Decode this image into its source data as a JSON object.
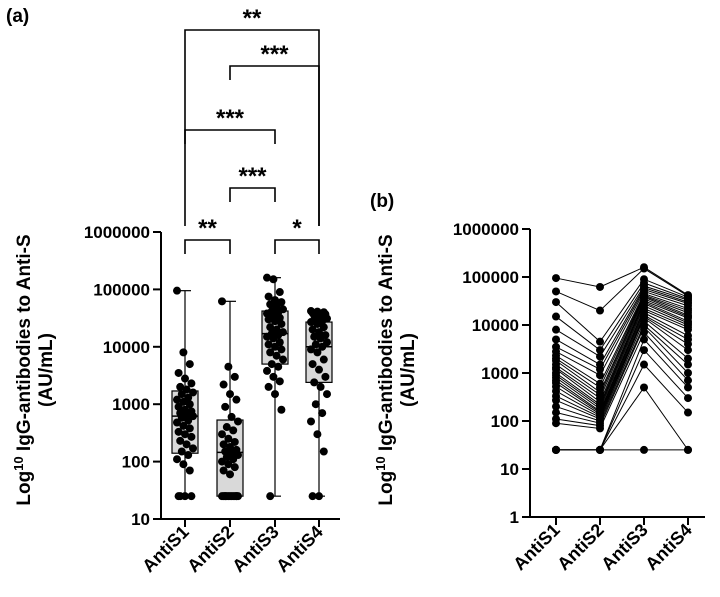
{
  "colors": {
    "box_fill": "#d9d9d9",
    "ink": "#000000",
    "background": "#ffffff"
  },
  "panels": {
    "a": "(a)",
    "b": "(b)"
  },
  "chart_data": [
    {
      "type": "box",
      "panel": "(a)",
      "title": "",
      "ylabel_prefix": "Log",
      "ylabel_superscript": "10",
      "ylabel_main": "IgG-antibodies to Anti-S",
      "ylabel_units": "(AU/mL)",
      "yscale": "log",
      "ylim": [
        10,
        1000000
      ],
      "yticks": [
        "10",
        "100",
        "1000",
        "10000",
        "100000",
        "1000000"
      ],
      "categories": [
        "AntiS1",
        "AntiS2",
        "AntiS3",
        "AntiS4"
      ],
      "boxes": [
        {
          "category": "AntiS1",
          "min": 25,
          "q1": 140,
          "median": 620,
          "q3": 1700,
          "max": 95000
        },
        {
          "category": "AntiS2",
          "min": 25,
          "q1": 25,
          "median": 145,
          "q3": 530,
          "max": 62000
        },
        {
          "category": "AntiS3",
          "min": 25,
          "q1": 5000,
          "median": 17000,
          "q3": 42000,
          "max": 160000
        },
        {
          "category": "AntiS4",
          "min": 25,
          "q1": 2400,
          "median": 10000,
          "q3": 27000,
          "max": 42000
        }
      ],
      "points": [
        {
          "category": "AntiS1",
          "values": [
            95000,
            8000,
            5000,
            3500,
            2800,
            2300,
            2000,
            1800,
            1600,
            1500,
            1300,
            1200,
            1100,
            1000,
            900,
            800,
            750,
            700,
            650,
            620,
            580,
            520,
            480,
            420,
            380,
            330,
            300,
            270,
            230,
            200,
            170,
            150,
            130,
            110,
            90,
            70,
            25,
            25,
            25,
            25
          ]
        },
        {
          "category": "AntiS2",
          "values": [
            62000,
            4500,
            3000,
            2200,
            1500,
            1200,
            900,
            600,
            500,
            400,
            350,
            300,
            250,
            220,
            200,
            180,
            160,
            150,
            140,
            130,
            120,
            110,
            100,
            90,
            80,
            70,
            60,
            25,
            25,
            25,
            25,
            25,
            25,
            25,
            25,
            25,
            25,
            25,
            25,
            25
          ]
        },
        {
          "category": "AntiS3",
          "values": [
            160000,
            150000,
            90000,
            75000,
            65000,
            60000,
            55000,
            50000,
            45000,
            42000,
            40000,
            38000,
            35000,
            32000,
            30000,
            28000,
            25000,
            22000,
            20000,
            18000,
            17000,
            16000,
            15000,
            14000,
            12000,
            11000,
            10000,
            9000,
            8000,
            7000,
            6000,
            5000,
            4500,
            3800,
            3000,
            2500,
            2000,
            1500,
            800,
            25
          ]
        },
        {
          "category": "AntiS4",
          "values": [
            42000,
            41000,
            40000,
            39000,
            38000,
            37000,
            35000,
            33000,
            31000,
            30000,
            28000,
            27000,
            25000,
            22000,
            20000,
            18000,
            16000,
            15000,
            14000,
            12000,
            11000,
            10000,
            9000,
            8000,
            6000,
            5000,
            4000,
            3000,
            2400,
            2000,
            1500,
            1000,
            700,
            500,
            300,
            150,
            25,
            25
          ]
        }
      ],
      "significance": [
        {
          "pair": [
            "AntiS1",
            "AntiS4"
          ],
          "label": "**"
        },
        {
          "pair": [
            "AntiS2",
            "AntiS4"
          ],
          "label": "***"
        },
        {
          "pair": [
            "AntiS1",
            "AntiS3"
          ],
          "label": "***"
        },
        {
          "pair": [
            "AntiS2",
            "AntiS3"
          ],
          "label": "***"
        },
        {
          "pair": [
            "AntiS1",
            "AntiS2"
          ],
          "label": "**"
        },
        {
          "pair": [
            "AntiS3",
            "AntiS4"
          ],
          "label": "*"
        }
      ]
    },
    {
      "type": "line",
      "panel": "(b)",
      "title": "",
      "ylabel_prefix": "Log",
      "ylabel_superscript": "10",
      "ylabel_main": "IgG-antibodies to Anti-S",
      "ylabel_units": "(AU/mL)",
      "yscale": "log",
      "ylim": [
        1,
        1000000
      ],
      "yticks": [
        "1",
        "10",
        "100",
        "1000",
        "10000",
        "100000",
        "1000000"
      ],
      "categories": [
        "AntiS1",
        "AntiS2",
        "AntiS3",
        "AntiS4"
      ],
      "paired_series": [
        [
          95000,
          62000,
          160000,
          42000
        ],
        [
          50000,
          20000,
          150000,
          40000
        ],
        [
          30000,
          4500,
          90000,
          38000
        ],
        [
          15000,
          3000,
          75000,
          35000
        ],
        [
          8000,
          2200,
          65000,
          33000
        ],
        [
          5000,
          1500,
          60000,
          30000
        ],
        [
          3500,
          1200,
          55000,
          28000
        ],
        [
          2800,
          900,
          50000,
          25000
        ],
        [
          2300,
          600,
          45000,
          22000
        ],
        [
          2000,
          500,
          42000,
          20000
        ],
        [
          1800,
          400,
          40000,
          18000
        ],
        [
          1500,
          350,
          38000,
          16000
        ],
        [
          1300,
          300,
          35000,
          15000
        ],
        [
          1200,
          250,
          32000,
          14000
        ],
        [
          1000,
          220,
          30000,
          12000
        ],
        [
          900,
          200,
          28000,
          11000
        ],
        [
          800,
          180,
          25000,
          10000
        ],
        [
          700,
          160,
          22000,
          9000
        ],
        [
          620,
          150,
          20000,
          8000
        ],
        [
          520,
          140,
          18000,
          6000
        ],
        [
          420,
          130,
          16000,
          5000
        ],
        [
          330,
          120,
          15000,
          4000
        ],
        [
          270,
          110,
          14000,
          3000
        ],
        [
          200,
          100,
          12000,
          2000
        ],
        [
          150,
          90,
          10000,
          1500
        ],
        [
          110,
          80,
          9000,
          1000
        ],
        [
          90,
          70,
          7000,
          700
        ],
        [
          25,
          25,
          5000,
          500
        ],
        [
          25,
          25,
          3000,
          300
        ],
        [
          25,
          25,
          1500,
          150
        ],
        [
          25,
          25,
          500,
          25
        ],
        [
          25,
          25,
          25,
          25
        ]
      ]
    }
  ]
}
